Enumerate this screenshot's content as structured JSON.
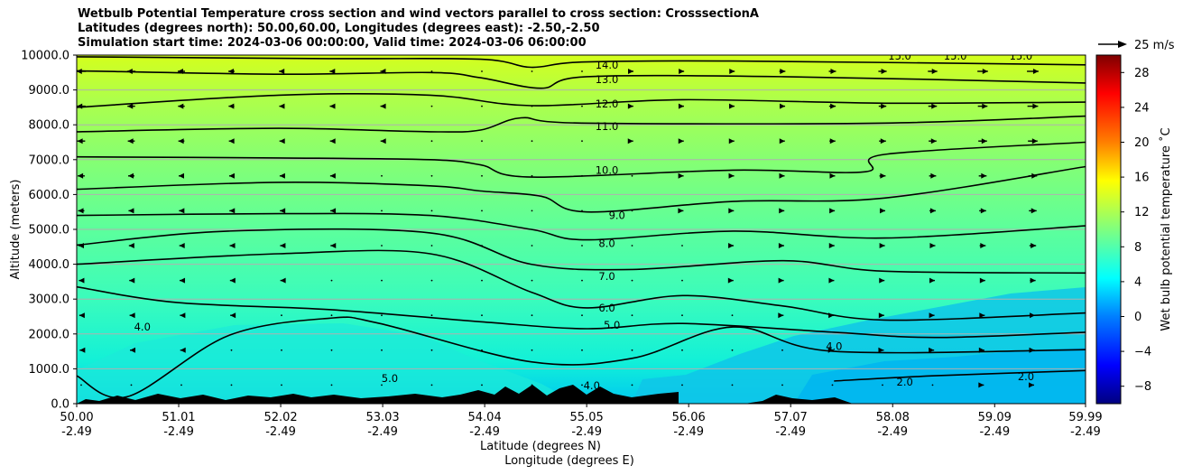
{
  "chart_data": {
    "type": "contour",
    "title_lines": [
      "Wetbulb Potential Temperature cross section and wind vectors parallel to cross section: CrosssectionA",
      "Latitudes (degrees north): 50.00,60.00, Longitudes (degrees east): -2.50,-2.50",
      "Simulation start time: 2024-03-06 00:00:00, Valid time: 2024-03-06 06:00:00"
    ],
    "ylabel": "Altitude (meters)",
    "xlabel_1": "Latitude (degrees N)",
    "xlabel_2": "Longitude (degrees E)",
    "ylim": [
      0,
      10000
    ],
    "yticks": [
      "0.0",
      "1000.0",
      "2000.0",
      "3000.0",
      "4000.0",
      "5000.0",
      "6000.0",
      "7000.0",
      "8000.0",
      "9000.0",
      "10000.0"
    ],
    "yticks_values": [
      0,
      1000,
      2000,
      3000,
      4000,
      5000,
      6000,
      7000,
      8000,
      9000,
      10000
    ],
    "x_range": [
      50.0,
      59.99
    ],
    "xticks_lat": [
      "50.00",
      "51.01",
      "52.02",
      "53.03",
      "54.04",
      "55.05",
      "56.06",
      "57.07",
      "58.08",
      "59.09",
      "59.99"
    ],
    "xticks_lon": [
      "-2.49",
      "-2.49",
      "-2.49",
      "-2.49",
      "-2.49",
      "-2.49",
      "-2.49",
      "-2.49",
      "-2.49",
      "-2.49",
      "-2.49"
    ],
    "xticks_values": [
      50.0,
      51.01,
      52.02,
      53.03,
      54.04,
      55.05,
      56.06,
      57.07,
      58.08,
      59.09,
      59.99
    ],
    "grid": "horizontal",
    "colorbar": {
      "label": "Wet bulb potential temperature ˚C",
      "range": [
        -10,
        30
      ],
      "ticks": [
        "−8",
        "−4",
        "0",
        "4",
        "8",
        "12",
        "16",
        "20",
        "24",
        "28"
      ],
      "tick_values": [
        -8,
        -4,
        0,
        4,
        8,
        12,
        16,
        20,
        24,
        28
      ],
      "colormap": "jet"
    },
    "quiver_key": "25 m/s",
    "contour_levels": [
      {
        "value": "14.0",
        "heights": [
          [
            50.0,
            9950
          ],
          [
            52.5,
            9900
          ],
          [
            54.0,
            9880
          ],
          [
            54.5,
            9650
          ],
          [
            55.0,
            9800
          ],
          [
            56.5,
            9830
          ],
          [
            59.99,
            9720
          ]
        ]
      },
      {
        "value": "13.0",
        "heights": [
          [
            50.0,
            9550
          ],
          [
            52.0,
            9450
          ],
          [
            53.5,
            9500
          ],
          [
            54.0,
            9350
          ],
          [
            54.6,
            9050
          ],
          [
            55.05,
            9380
          ],
          [
            57.0,
            9380
          ],
          [
            59.99,
            9200
          ]
        ]
      },
      {
        "value": "12.0",
        "heights": [
          [
            50.0,
            8500
          ],
          [
            52.0,
            8850
          ],
          [
            53.5,
            8850
          ],
          [
            54.5,
            8550
          ],
          [
            56.0,
            8720
          ],
          [
            58.0,
            8620
          ],
          [
            59.99,
            8650
          ]
        ]
      },
      {
        "value": "11.0",
        "heights": [
          [
            50.0,
            7800
          ],
          [
            52.0,
            7900
          ],
          [
            53.5,
            7800
          ],
          [
            54.0,
            7850
          ],
          [
            54.4,
            8200
          ],
          [
            55.0,
            8050
          ],
          [
            58.0,
            8050
          ],
          [
            59.99,
            8250
          ]
        ]
      },
      {
        "value": "10.0",
        "heights": [
          [
            50.0,
            7080
          ],
          [
            52.0,
            7050
          ],
          [
            53.5,
            7000
          ],
          [
            54.0,
            6850
          ],
          [
            54.5,
            6500
          ],
          [
            56.5,
            6700
          ],
          [
            57.8,
            6650
          ],
          [
            58.0,
            7150
          ],
          [
            59.99,
            7500
          ]
        ]
      },
      {
        "value": "9.0",
        "heights": [
          [
            50.0,
            6150
          ],
          [
            52.0,
            6350
          ],
          [
            53.5,
            6250
          ],
          [
            54.0,
            6100
          ],
          [
            54.6,
            5950
          ],
          [
            55.05,
            5500
          ],
          [
            56.5,
            5800
          ],
          [
            58.0,
            5900
          ],
          [
            59.99,
            6800
          ]
        ]
      },
      {
        "value": "8.0",
        "heights": [
          [
            50.0,
            5400
          ],
          [
            52.0,
            5450
          ],
          [
            53.5,
            5400
          ],
          [
            54.5,
            5000
          ],
          [
            55.05,
            4700
          ],
          [
            56.5,
            4950
          ],
          [
            58.0,
            4750
          ],
          [
            59.99,
            5100
          ]
        ]
      },
      {
        "value": "7.0",
        "heights": [
          [
            50.0,
            4550
          ],
          [
            51.5,
            4950
          ],
          [
            53.5,
            4900
          ],
          [
            54.5,
            4000
          ],
          [
            55.5,
            3850
          ],
          [
            57.0,
            4100
          ],
          [
            58.0,
            3800
          ],
          [
            59.99,
            3750
          ]
        ]
      },
      {
        "value": "6.0",
        "heights": [
          [
            50.0,
            4000
          ],
          [
            52.0,
            4300
          ],
          [
            53.5,
            4300
          ],
          [
            54.5,
            3200
          ],
          [
            55.05,
            2750
          ],
          [
            56.0,
            3100
          ],
          [
            57.0,
            2800
          ],
          [
            58.0,
            2400
          ],
          [
            59.99,
            2600
          ]
        ]
      },
      {
        "value": "5.0",
        "heights": [
          [
            50.0,
            3350
          ],
          [
            51.0,
            2900
          ],
          [
            52.5,
            2700
          ],
          [
            54.0,
            2350
          ],
          [
            55.05,
            2150
          ],
          [
            56.0,
            2300
          ],
          [
            57.5,
            2050
          ],
          [
            58.5,
            1900
          ],
          [
            59.99,
            2050
          ]
        ]
      },
      {
        "value": "4.0",
        "heights": [
          [
            50.0,
            800
          ],
          [
            50.5,
            200
          ],
          [
            51.5,
            1950
          ],
          [
            52.5,
            2450
          ],
          [
            53.0,
            2300
          ],
          [
            54.5,
            1200
          ],
          [
            55.5,
            1300
          ],
          [
            56.5,
            2200
          ],
          [
            57.5,
            1500
          ],
          [
            59.99,
            1550
          ]
        ]
      },
      {
        "value": "2.0",
        "heights": [
          [
            57.5,
            650
          ],
          [
            58.5,
            800
          ],
          [
            59.99,
            950
          ]
        ]
      }
    ],
    "contour_labels": [
      {
        "text": "14.0",
        "x": 55.25,
        "y": 9720
      },
      {
        "text": "13.0",
        "x": 55.25,
        "y": 9300
      },
      {
        "text": "12.0",
        "x": 55.25,
        "y": 8600
      },
      {
        "text": "11.0",
        "x": 55.25,
        "y": 7950
      },
      {
        "text": "10.0",
        "x": 55.25,
        "y": 6700
      },
      {
        "text": "9.0",
        "x": 55.35,
        "y": 5400
      },
      {
        "text": "8.0",
        "x": 55.25,
        "y": 4600
      },
      {
        "text": "7.0",
        "x": 55.25,
        "y": 3650
      },
      {
        "text": "6.0",
        "x": 55.25,
        "y": 2750
      },
      {
        "text": "5.0",
        "x": 55.3,
        "y": 2250
      },
      {
        "text": "4.0",
        "x": 50.65,
        "y": 2200
      },
      {
        "text": "4.0",
        "x": 57.5,
        "y": 1650
      },
      {
        "text": "4.0",
        "x": 55.1,
        "y": 520
      },
      {
        "text": "2.0",
        "x": 58.2,
        "y": 620
      },
      {
        "text": "2.0",
        "x": 59.4,
        "y": 780
      },
      {
        "text": "5.0",
        "x": 53.1,
        "y": 720
      },
      {
        "text": "15.0",
        "x": 58.15,
        "y": 9980
      },
      {
        "text": "15.0",
        "x": 58.7,
        "y": 9980
      },
      {
        "text": "15.0",
        "x": 59.35,
        "y": 9980
      }
    ]
  }
}
